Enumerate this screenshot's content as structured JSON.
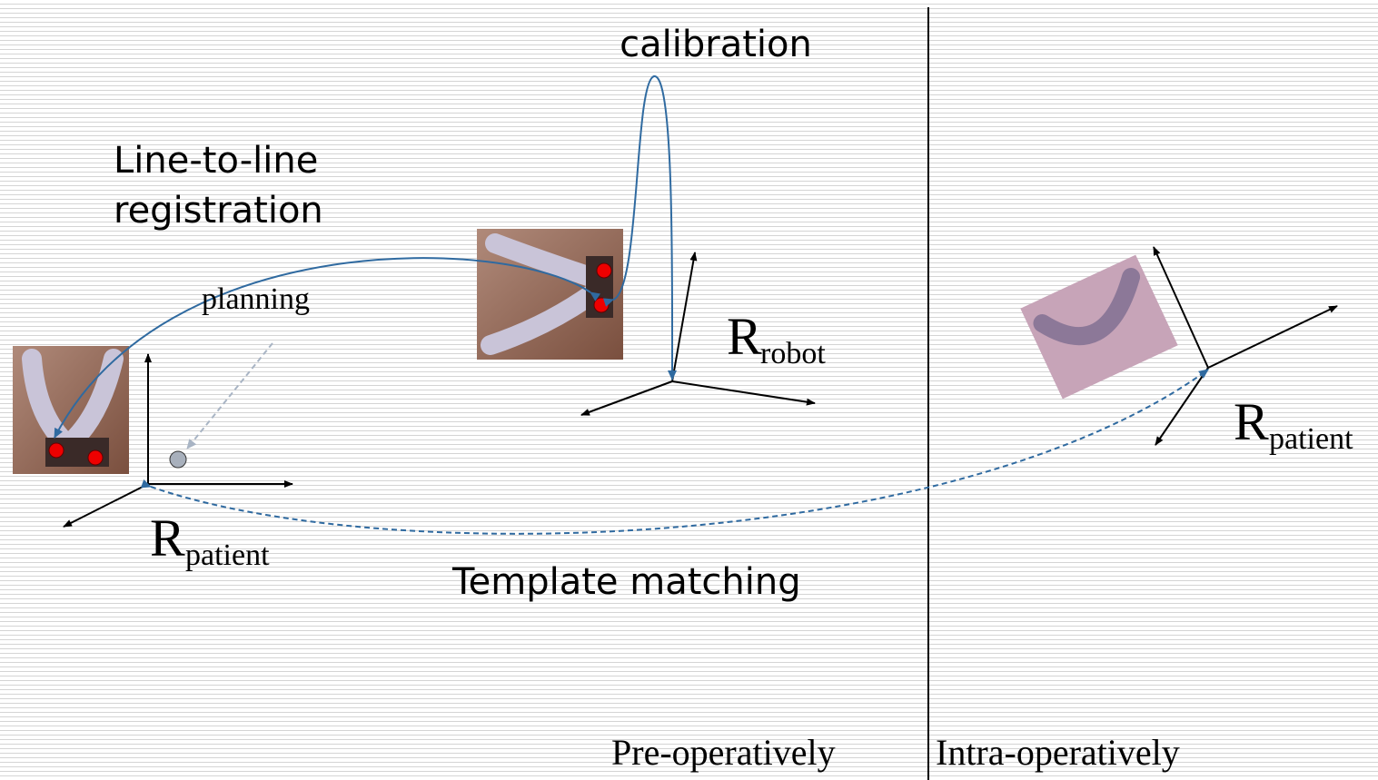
{
  "labels": {
    "calibration": "calibration",
    "registration": [
      "Line-to-line",
      "registration"
    ],
    "planning": "planning",
    "robot_frame": {
      "main": "R",
      "sub": "robot"
    },
    "patient_frame_pre": {
      "main": "R",
      "sub": "patient"
    },
    "patient_frame_intra": {
      "main": "R",
      "sub": "patient"
    },
    "template_matching": "Template matching",
    "pre_operatively": "Pre-operatively",
    "intra_operatively": "Intra-operatively"
  }
}
